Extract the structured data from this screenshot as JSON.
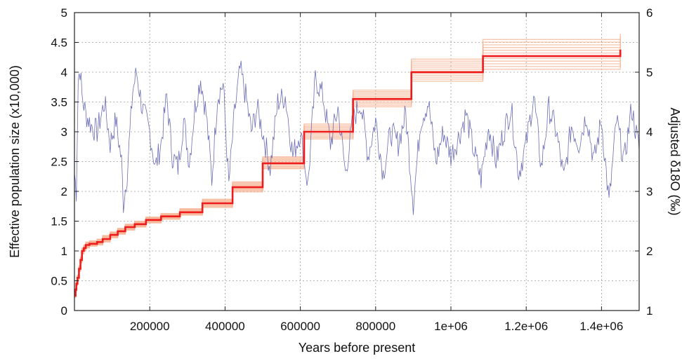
{
  "chart_data": {
    "type": "line",
    "title": "",
    "xlabel": "Years before present",
    "ylabel_left": "Effective population size (x10,000)",
    "ylabel_right": "Adjusted δ18O  (‰)",
    "xlim": [
      0,
      1500000
    ],
    "ylim_left": [
      0,
      5
    ],
    "ylim_right": [
      1,
      6
    ],
    "grid": true,
    "x_ticks": [
      {
        "value": 200000,
        "label": "200000"
      },
      {
        "value": 400000,
        "label": "400000"
      },
      {
        "value": 600000,
        "label": "600000"
      },
      {
        "value": 800000,
        "label": "800000"
      },
      {
        "value": 1000000,
        "label": "1e+06"
      },
      {
        "value": 1200000,
        "label": "1.2e+06"
      },
      {
        "value": 1400000,
        "label": "1.4e+06"
      }
    ],
    "y_ticks_left": [
      {
        "value": 0,
        "label": "0"
      },
      {
        "value": 0.5,
        "label": "0.5"
      },
      {
        "value": 1,
        "label": "1"
      },
      {
        "value": 1.5,
        "label": "1.5"
      },
      {
        "value": 2,
        "label": "2"
      },
      {
        "value": 2.5,
        "label": "2.5"
      },
      {
        "value": 3,
        "label": "3"
      },
      {
        "value": 3.5,
        "label": "3.5"
      },
      {
        "value": 4,
        "label": "4"
      },
      {
        "value": 4.5,
        "label": "4.5"
      },
      {
        "value": 5,
        "label": "5"
      }
    ],
    "y_ticks_right": [
      {
        "value": 1,
        "label": "1"
      },
      {
        "value": 2,
        "label": "2"
      },
      {
        "value": 3,
        "label": "3"
      },
      {
        "value": 4,
        "label": "4"
      },
      {
        "value": 5,
        "label": "5"
      },
      {
        "value": 6,
        "label": "6"
      }
    ],
    "colors": {
      "ne_line": "#ee1c1c",
      "ne_band": "#f5b08f",
      "d18o_line": "#6d6db5",
      "grid": "#9a9a9a",
      "axis": "#222222"
    },
    "series": [
      {
        "axis": "left",
        "style": "step",
        "x": [
          0,
          3000,
          5000,
          8000,
          12000,
          16000,
          20000,
          25000,
          30000,
          40000,
          60000,
          75000,
          95000,
          115000,
          135000,
          160000,
          190000,
          230000,
          280000,
          340000,
          420000,
          500000,
          610000,
          740000,
          895000,
          1085000,
          1450000
        ],
        "values": [
          0.25,
          0.35,
          0.45,
          0.55,
          0.7,
          0.85,
          1.0,
          1.05,
          1.1,
          1.12,
          1.15,
          1.2,
          1.27,
          1.33,
          1.4,
          1.45,
          1.52,
          1.58,
          1.65,
          1.8,
          2.07,
          2.47,
          3.0,
          3.55,
          4.0,
          4.27,
          4.38
        ]
      },
      {
        "axis": "left",
        "style": "band",
        "x": [
          0,
          3000,
          5000,
          8000,
          12000,
          16000,
          20000,
          25000,
          30000,
          40000,
          60000,
          75000,
          95000,
          115000,
          135000,
          160000,
          190000,
          230000,
          280000,
          340000,
          420000,
          500000,
          610000,
          740000,
          895000,
          1085000,
          1450000
        ],
        "lower": [
          0.22,
          0.32,
          0.42,
          0.52,
          0.66,
          0.8,
          0.95,
          1.0,
          1.05,
          1.08,
          1.1,
          1.15,
          1.22,
          1.28,
          1.35,
          1.4,
          1.47,
          1.53,
          1.6,
          1.73,
          1.99,
          2.38,
          2.88,
          3.42,
          3.85,
          4.05,
          4.12
        ],
        "upper": [
          0.28,
          0.38,
          0.48,
          0.6,
          0.75,
          0.9,
          1.05,
          1.1,
          1.15,
          1.17,
          1.2,
          1.26,
          1.32,
          1.38,
          1.45,
          1.5,
          1.57,
          1.63,
          1.71,
          1.87,
          2.16,
          2.58,
          3.13,
          3.7,
          4.22,
          4.55,
          4.65
        ]
      },
      {
        "axis": "right",
        "style": "line",
        "x": [
          0,
          5000,
          10000,
          15000,
          20000,
          30000,
          45000,
          60000,
          80000,
          95000,
          110000,
          125000,
          130000,
          140000,
          155000,
          165000,
          180000,
          200000,
          215000,
          230000,
          245000,
          260000,
          275000,
          290000,
          305000,
          320000,
          335000,
          350000,
          365000,
          380000,
          395000,
          410000,
          425000,
          440000,
          455000,
          470000,
          485000,
          500000,
          520000,
          540000,
          560000,
          580000,
          600000,
          620000,
          640000,
          660000,
          680000,
          700000,
          720000,
          740000,
          760000,
          780000,
          800000,
          820000,
          840000,
          860000,
          880000,
          900000,
          920000,
          940000,
          960000,
          980000,
          1000000,
          1020000,
          1040000,
          1060000,
          1080000,
          1100000,
          1120000,
          1140000,
          1160000,
          1180000,
          1200000,
          1220000,
          1240000,
          1260000,
          1280000,
          1300000,
          1320000,
          1340000,
          1360000,
          1380000,
          1400000,
          1420000,
          1440000,
          1460000,
          1480000,
          1500000
        ],
        "values": [
          3.3,
          3.0,
          4.9,
          5.05,
          4.6,
          4.3,
          4.1,
          4.0,
          4.5,
          3.8,
          4.2,
          3.5,
          2.8,
          3.3,
          4.7,
          5.0,
          4.4,
          4.0,
          3.4,
          3.8,
          4.6,
          3.6,
          3.4,
          4.2,
          3.5,
          4.4,
          4.9,
          4.3,
          3.2,
          4.6,
          4.8,
          3.1,
          4.3,
          5.05,
          4.6,
          4.0,
          4.4,
          4.0,
          3.4,
          4.5,
          4.6,
          3.6,
          4.0,
          3.1,
          4.9,
          4.6,
          3.8,
          4.4,
          3.3,
          4.2,
          4.5,
          3.6,
          4.2,
          3.3,
          4.0,
          3.8,
          4.3,
          2.8,
          4.2,
          4.5,
          3.5,
          4.0,
          3.6,
          3.9,
          4.3,
          3.7,
          3.2,
          4.1,
          3.5,
          4.0,
          4.4,
          3.3,
          3.8,
          4.6,
          3.4,
          4.4,
          4.0,
          3.2,
          4.1,
          3.8,
          4.3,
          3.5,
          4.2,
          2.8,
          4.2,
          3.5,
          4.4,
          3.7
        ],
        "seed_noise": 0.22
      }
    ]
  }
}
